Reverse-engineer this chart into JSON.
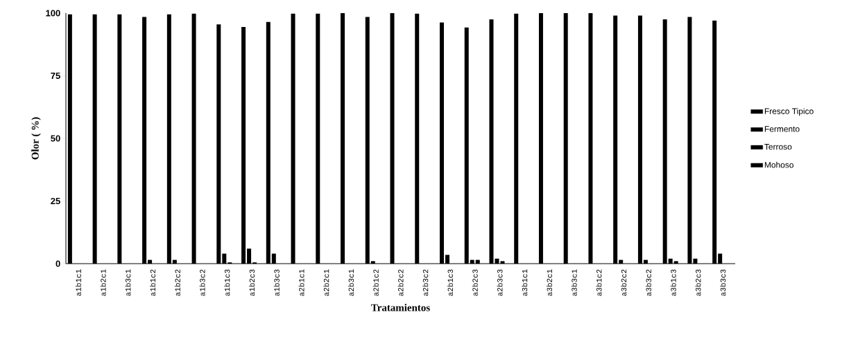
{
  "chart_data": {
    "type": "bar",
    "xlabel": "Tratamientos",
    "ylabel": "Olor ( %)",
    "categories": [
      "a1b1c1",
      "a1b2c1",
      "a1b3c1",
      "a1b1c2",
      "a1b2c2",
      "a1b3c2",
      "a1b1c3",
      "a1b2c3",
      "a1b3c3",
      "a2b1c1",
      "a2b2c1",
      "a2b3c1",
      "a2b1c2",
      "a2b2c2",
      "a2b3c2",
      "a2b1c3",
      "a2b2c3",
      "a2b3c3",
      "a3b1c1",
      "a3b2c1",
      "a3b3c1",
      "a3b1c2",
      "a3b2c2",
      "a3b3c2",
      "a3b1c3",
      "a3b2c3",
      "a3b3c3"
    ],
    "series": [
      {
        "name": "Fresco Tipico",
        "color": "#000000",
        "values": [
          99.5,
          99.5,
          99.5,
          98.5,
          99.5,
          99.8,
          95.5,
          94.5,
          96.5,
          99.8,
          99.8,
          100,
          98.5,
          100,
          99.8,
          96.3,
          94.3,
          97.5,
          99.8,
          100,
          100,
          100,
          99,
          99,
          97.5,
          98.5,
          97
        ]
      },
      {
        "name": "Fermento",
        "color": "#000000",
        "values": [
          0,
          0,
          0,
          1.5,
          1.5,
          0,
          4,
          6,
          4,
          0,
          0,
          0,
          1,
          0,
          0,
          3.5,
          1.5,
          2,
          0,
          0,
          0,
          0,
          1.5,
          1.5,
          2,
          2,
          4
        ]
      },
      {
        "name": "Terroso",
        "color": "#000000",
        "values": [
          0,
          0,
          0,
          0,
          0,
          0,
          0.5,
          0.5,
          0,
          0,
          0,
          0,
          0,
          0,
          0,
          0,
          1.5,
          1,
          0,
          0,
          0,
          0,
          0,
          0,
          1,
          0,
          0
        ]
      },
      {
        "name": "Mohoso",
        "color": "#000000",
        "values": [
          0,
          0,
          0,
          0,
          0,
          0,
          0,
          0,
          0,
          0,
          0,
          0,
          0,
          0,
          0,
          0,
          0,
          0,
          0,
          0,
          0,
          0,
          0,
          0,
          0,
          0,
          0
        ]
      }
    ],
    "ylim": [
      0,
      100
    ],
    "yticks": [
      0,
      25,
      50,
      75,
      100
    ],
    "legend": "right"
  }
}
